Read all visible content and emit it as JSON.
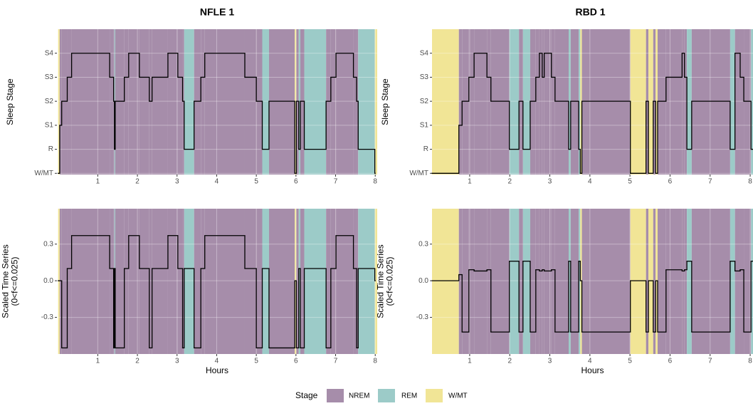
{
  "chart_data": [
    {
      "type": "step",
      "title": "NFLE 1",
      "ylabel": [
        "Sleep Stage"
      ],
      "xlim": [
        -0.03,
        8.05
      ],
      "xticks": [
        1,
        2,
        3,
        4,
        5,
        6,
        7,
        8
      ],
      "ylim": [
        -0.05,
        6
      ],
      "yticks": [
        {
          "value": 0,
          "label": "W/MT"
        },
        {
          "value": 1,
          "label": "R"
        },
        {
          "value": 2,
          "label": "S1"
        },
        {
          "value": 3,
          "label": "S2"
        },
        {
          "value": 4,
          "label": "S3"
        },
        {
          "value": 5,
          "label": "S4"
        }
      ],
      "x": [
        0,
        0.04,
        0.09,
        0.23,
        0.34,
        1.3,
        1.4,
        1.42,
        1.44,
        1.67,
        1.78,
        2.05,
        2.3,
        2.37,
        2.77,
        3.02,
        3.14,
        3.18,
        3.43,
        3.6,
        3.7,
        4.71,
        5.0,
        5.15,
        5.32,
        5.97,
        6.01,
        6.07,
        6.11,
        6.21,
        6.76,
        6.88,
        7.01,
        7.45,
        7.53,
        7.57,
        7.99,
        8.0
      ],
      "values": [
        0,
        2,
        3,
        4,
        5,
        4,
        3,
        1,
        3,
        4,
        5,
        4,
        3,
        4,
        5,
        4,
        3,
        1,
        3,
        4,
        5,
        4,
        3,
        1,
        3,
        0,
        3,
        1,
        3,
        1,
        3,
        4,
        5,
        4,
        3,
        1,
        0,
        0
      ],
      "color": "#000000",
      "grid": true
    },
    {
      "type": "step",
      "title": "RBD 1",
      "ylabel": [
        "Sleep Stage"
      ],
      "xlim": [
        0.06,
        8.07
      ],
      "xticks": [
        1,
        2,
        3,
        4,
        5,
        6,
        7,
        8
      ],
      "ylim": [
        -0.05,
        6
      ],
      "yticks": [
        {
          "value": 0,
          "label": "W/MT"
        },
        {
          "value": 1,
          "label": "R"
        },
        {
          "value": 2,
          "label": "S1"
        },
        {
          "value": 3,
          "label": "S2"
        },
        {
          "value": 4,
          "label": "S3"
        },
        {
          "value": 5,
          "label": "S4"
        }
      ],
      "x": [
        0.06,
        0.73,
        0.81,
        0.98,
        1.11,
        1.43,
        1.53,
        1.99,
        2.23,
        2.33,
        2.51,
        2.65,
        2.74,
        2.81,
        2.86,
        3.04,
        3.13,
        3.47,
        3.52,
        3.72,
        3.76,
        3.8,
        5.01,
        5.4,
        5.46,
        5.58,
        5.64,
        5.69,
        5.9,
        6.3,
        6.36,
        6.42,
        6.54,
        7.5,
        7.62,
        7.75,
        7.84,
        8.02,
        8.07
      ],
      "values": [
        0,
        2,
        3,
        4,
        5,
        4,
        3,
        1,
        3,
        1,
        3,
        4,
        5,
        4,
        5,
        4,
        3,
        1,
        3,
        1,
        0,
        3,
        0,
        3,
        0,
        3,
        0,
        3,
        4,
        5,
        4,
        1,
        3,
        1,
        5,
        4,
        3,
        1,
        1
      ],
      "color": "#000000",
      "grid": true
    },
    {
      "type": "step",
      "ylabel": [
        "Scaled Time Series",
        "(0<f<=0.025)"
      ],
      "xlabel": "Hours",
      "xlim": [
        -0.03,
        8.05
      ],
      "xticks": [
        1,
        2,
        3,
        4,
        5,
        6,
        7,
        8
      ],
      "ylim": [
        -0.6,
        0.59
      ],
      "yticks": [
        -0.3,
        {
          "value": 0,
          "label": "0.0"
        },
        0.3
      ],
      "x": [
        0,
        0.04,
        0.09,
        0.23,
        0.34,
        1.3,
        1.4,
        1.42,
        1.44,
        1.67,
        1.78,
        2.05,
        2.3,
        2.37,
        2.77,
        3.02,
        3.14,
        3.18,
        3.43,
        3.6,
        3.7,
        4.71,
        5.0,
        5.15,
        5.32,
        5.97,
        6.01,
        6.07,
        6.11,
        6.21,
        6.76,
        6.88,
        7.01,
        7.45,
        7.53,
        7.57,
        7.99,
        8.0
      ],
      "values": [
        0,
        0,
        -0.55,
        0.1,
        0.37,
        0.1,
        -0.55,
        0.1,
        -0.55,
        0.1,
        0.37,
        0.1,
        -0.55,
        0.1,
        0.37,
        0.1,
        -0.55,
        0.1,
        -0.55,
        0.1,
        0.37,
        0.1,
        -0.55,
        0.1,
        -0.55,
        0,
        -0.55,
        0.1,
        -0.55,
        0.1,
        -0.55,
        0.1,
        0.37,
        0.1,
        -0.55,
        0.1,
        0,
        0
      ],
      "color": "#000000",
      "grid": true
    },
    {
      "type": "step",
      "ylabel": [
        "Scaled Time Series",
        "(0<f<=0.025)"
      ],
      "xlabel": "Hours",
      "xlim": [
        0.06,
        8.07
      ],
      "xticks": [
        1,
        2,
        3,
        4,
        5,
        6,
        7,
        8
      ],
      "ylim": [
        -0.6,
        0.59
      ],
      "yticks": [
        -0.3,
        {
          "value": 0,
          "label": "0.0"
        },
        0.3
      ],
      "x": [
        0.06,
        0.73,
        0.81,
        0.98,
        1.11,
        1.43,
        1.53,
        1.99,
        2.23,
        2.33,
        2.51,
        2.65,
        2.74,
        2.81,
        2.86,
        3.04,
        3.13,
        3.47,
        3.52,
        3.72,
        3.76,
        3.8,
        5.01,
        5.4,
        5.46,
        5.58,
        5.64,
        5.69,
        5.9,
        6.3,
        6.36,
        6.42,
        6.54,
        7.5,
        7.62,
        7.75,
        7.84,
        8.02,
        8.07
      ],
      "values": [
        0,
        0.05,
        -0.42,
        0.09,
        0.08,
        0.09,
        -0.42,
        0.16,
        -0.42,
        0.16,
        -0.42,
        0.09,
        0.08,
        0.09,
        0.08,
        0.09,
        -0.42,
        0.16,
        -0.42,
        0.16,
        0,
        -0.42,
        0,
        -0.42,
        0,
        -0.42,
        0,
        -0.42,
        0.09,
        0.08,
        0.09,
        0.16,
        -0.42,
        0.16,
        0.08,
        0.09,
        -0.42,
        0.16,
        0.16
      ],
      "color": "#000000",
      "grid": true
    }
  ],
  "legend": {
    "title": "Stage",
    "items": [
      {
        "name": "NREM",
        "color": "#a68daa"
      },
      {
        "name": "REM",
        "color": "#9ccbc8"
      },
      {
        "name": "W/MT",
        "color": "#f1e596"
      }
    ]
  }
}
